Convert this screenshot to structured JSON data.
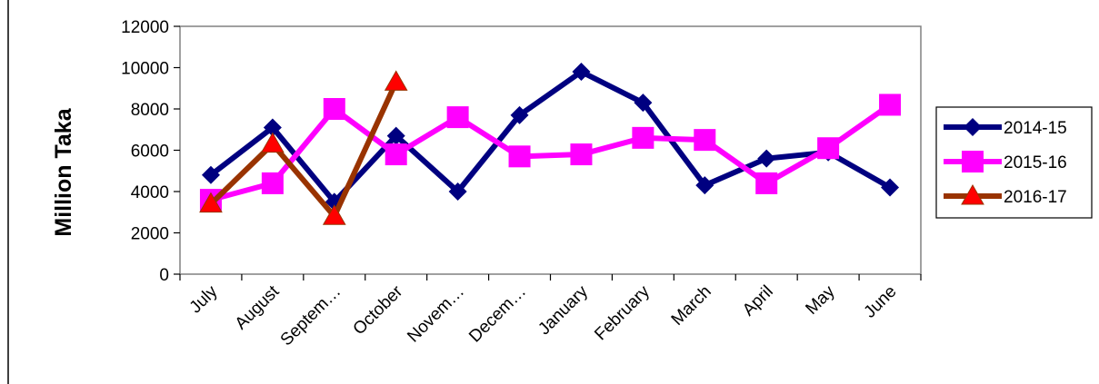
{
  "chart_data": {
    "type": "line",
    "title": "",
    "xlabel": "",
    "ylabel": "Million Taka",
    "ylim": [
      0,
      12000
    ],
    "yticks": [
      0,
      2000,
      4000,
      6000,
      8000,
      10000,
      12000
    ],
    "categories": [
      "July",
      "August",
      "Septem…",
      "October",
      "Novem…",
      "Decem…",
      "January",
      "February",
      "March",
      "April",
      "May",
      "June"
    ],
    "legend_position": "right",
    "grid": false,
    "series": [
      {
        "name": "2014-15",
        "color": "#000080",
        "marker": "diamond",
        "values": [
          4800,
          7100,
          3500,
          6700,
          4000,
          7700,
          9800,
          8300,
          4300,
          5600,
          5900,
          4200
        ]
      },
      {
        "name": "2015-16",
        "color": "#FF00FF",
        "marker": "square",
        "values": [
          3600,
          4400,
          8000,
          5800,
          7600,
          5700,
          5800,
          6600,
          6500,
          4400,
          6100,
          8200
        ]
      },
      {
        "name": "2016-17",
        "color": "#993300",
        "marker": "triangle",
        "marker_fill": "#FF0000",
        "values": [
          3400,
          6300,
          2800,
          9300,
          null,
          null,
          null,
          null,
          null,
          null,
          null,
          null
        ]
      }
    ]
  }
}
